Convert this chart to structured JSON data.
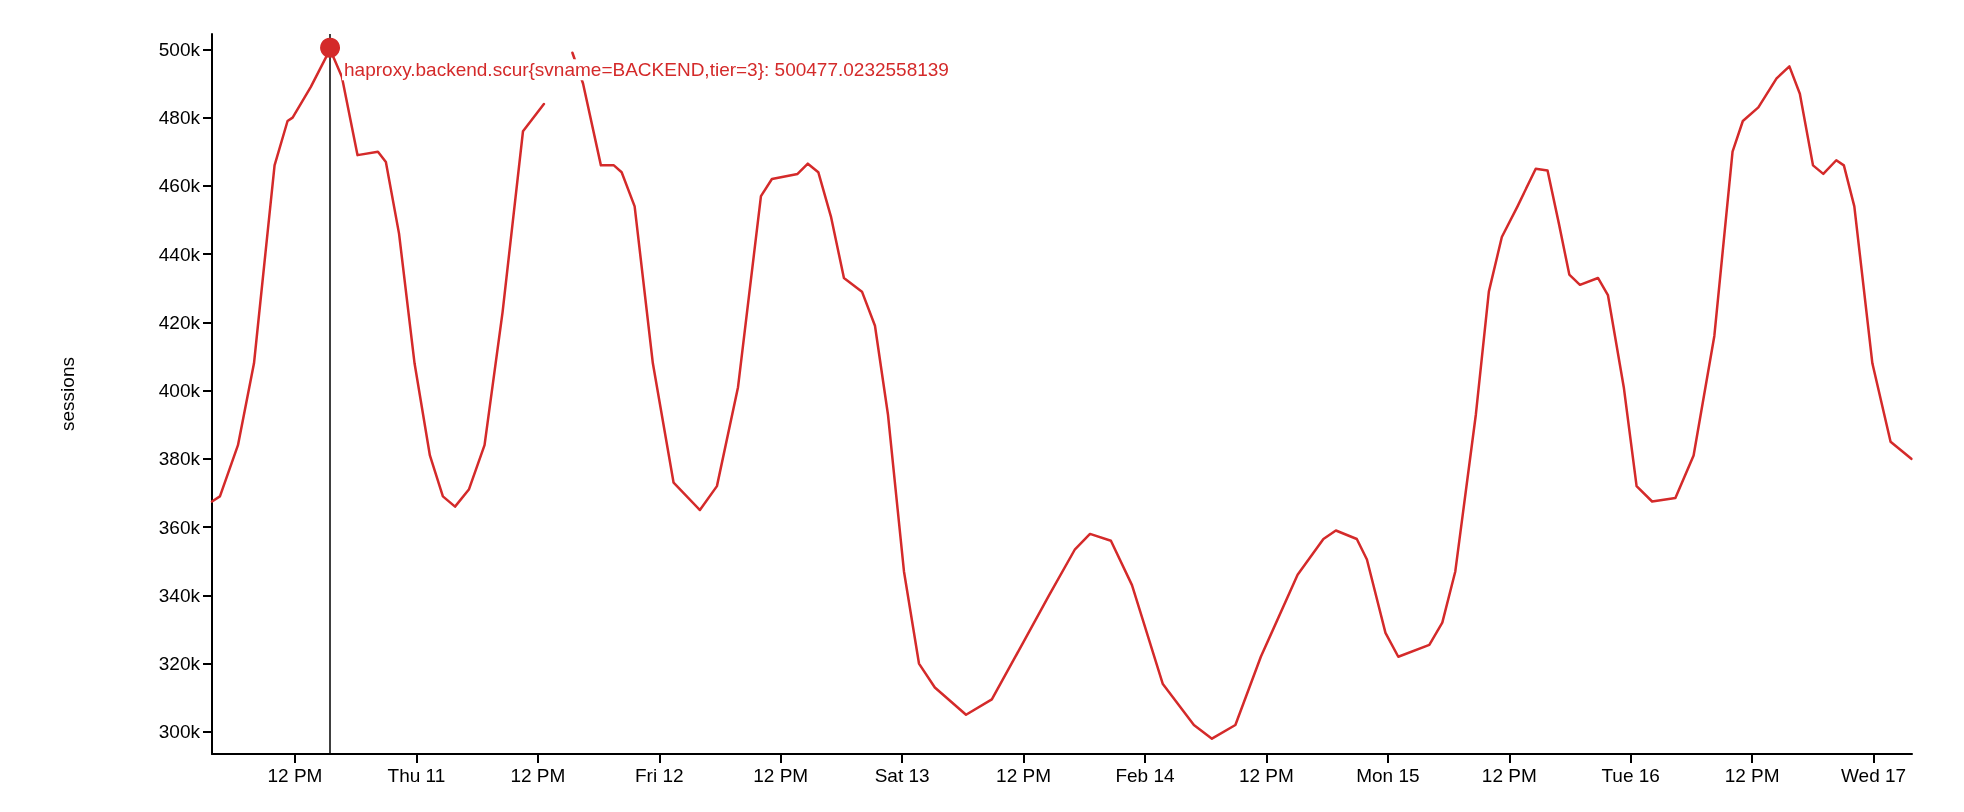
{
  "chart_data": {
    "type": "line",
    "ylabel": "sessions",
    "marker": "none",
    "x": [
      "--02-10T03:48",
      "--02-10T04:35",
      "--02-10T06:22",
      "--02-10T07:57",
      "--02-10T09:59",
      "--02-10T11:16",
      "--02-10T11:46",
      "--02-10T13:34",
      "--02-10T15:28",
      "--02-10T16:38",
      "--02-10T18:11",
      "--02-10T20:12",
      "--02-10T20:59",
      "--02-10T22:17",
      "--02-10T23:49",
      "--02-11T01:20",
      "--02-11T02:37",
      "--02-11T03:49",
      "--02-11T05:11",
      "--02-11T06:44",
      "--02-11T08:31",
      "--02-11T10:32",
      "--02-11T12:36",
      "--02-11T13:53",
      "--02-11T15:25",
      "--02-11T16:28",
      "--02-11T18:14",
      "--02-11T19:31",
      "--02-11T20:17",
      "--02-11T21:34",
      "--02-11T23:22",
      "--02-12T01:25",
      "--02-12T04:01",
      "--02-12T05:42",
      "--02-12T07:47",
      "--02-12T10:03",
      "--02-12T11:08",
      "--02-12T13:40",
      "--02-12T14:41",
      "--02-12T15:43",
      "--02-12T16:58",
      "--02-12T18:15",
      "--02-12T20:02",
      "--02-12T21:19",
      "--02-12T22:36",
      "--02-13T00:11",
      "--02-13T01:40",
      "--02-13T03:14",
      "--02-13T06:19",
      "--02-13T08:52",
      "--02-13T11:56",
      "--02-13T14:31",
      "--02-13T17:05",
      "--02-13T18:34",
      "--02-13T20:38",
      "--02-13T22:43",
      "--02-14T01:46",
      "--02-14T04:50",
      "--02-14T06:37",
      "--02-14T08:56",
      "--02-14T11:27",
      "--02-14T15:05",
      "--02-14T17:38",
      "--02-14T18:52",
      "--02-14T20:56",
      "--02-14T21:56",
      "--02-14T23:46",
      "--02-15T01:02",
      "--02-15T04:06",
      "--02-15T05:23",
      "--02-15T06:40",
      "--02-15T08:42",
      "--02-15T09:59",
      "--02-15T11:16",
      "--02-15T12:49",
      "--02-15T14:37",
      "--02-15T15:47",
      "--02-15T16:54",
      "--02-15T17:56",
      "--02-15T18:59",
      "--02-15T20:46",
      "--02-15T21:45",
      "--02-15T23:19",
      "--02-16T00:35",
      "--02-16T02:07",
      "--02-16T04:25",
      "--02-16T06:13",
      "--02-16T08:16",
      "--02-16T10:04",
      "--02-16T11:05",
      "--02-16T12:37",
      "--02-16T14:25",
      "--02-16T15:41",
      "--02-16T16:43",
      "--02-16T18:01",
      "--02-16T19:02",
      "--02-16T20:19",
      "--02-16T21:04",
      "--02-16T22:06",
      "--02-16T23:53",
      "--02-17T01:41",
      "--02-17T03:44"
    ],
    "series": [
      {
        "color": "#d42a2a",
        "values": [
          367500,
          369000,
          384000,
          408000,
          466000,
          479000,
          480000,
          489000,
          500000,
          492000,
          469000,
          470000,
          467000,
          446000,
          408000,
          381000,
          369000,
          366000,
          371000,
          384000,
          423000,
          476000,
          484000,
          null,
          499000,
          490000,
          466000,
          466000,
          464000,
          454000,
          408000,
          373000,
          365000,
          372000,
          401000,
          457000,
          462000,
          463500,
          466500,
          464000,
          451000,
          433000,
          429000,
          419000,
          393000,
          347000,
          320000,
          313000,
          305000,
          309500,
          326000,
          340000,
          353500,
          358000,
          356000,
          343000,
          314000,
          302000,
          298000,
          302000,
          322000,
          346000,
          356500,
          359000,
          356500,
          350500,
          329000,
          322000,
          325500,
          332000,
          347000,
          393000,
          429000,
          445000,
          454000,
          465000,
          464500,
          449000,
          434000,
          431000,
          433000,
          428000,
          401000,
          372000,
          367500,
          368500,
          381000,
          416000,
          470000,
          479000,
          483000,
          491500,
          495000,
          487000,
          466000,
          463500,
          467500,
          466000,
          454000,
          408000,
          385000,
          380000
        ]
      }
    ],
    "xlim": [
      "--02-10T03:48",
      "--02-17T03:48"
    ],
    "xticks": [
      {
        "value": "--02-10T12:00",
        "label": "12 PM"
      },
      {
        "value": "--02-11T00:00",
        "label": "Thu 11"
      },
      {
        "value": "--02-11T12:00",
        "label": "12 PM"
      },
      {
        "value": "--02-12T00:00",
        "label": "Fri 12"
      },
      {
        "value": "--02-12T12:00",
        "label": "12 PM"
      },
      {
        "value": "--02-13T00:00",
        "label": "Sat 13"
      },
      {
        "value": "--02-13T12:00",
        "label": "12 PM"
      },
      {
        "value": "--02-14T00:00",
        "label": "Feb 14"
      },
      {
        "value": "--02-14T12:00",
        "label": "12 PM"
      },
      {
        "value": "--02-15T00:00",
        "label": "Mon 15"
      },
      {
        "value": "--02-15T12:00",
        "label": "12 PM"
      },
      {
        "value": "--02-16T00:00",
        "label": "Tue 16"
      },
      {
        "value": "--02-16T12:00",
        "label": "12 PM"
      },
      {
        "value": "--02-17T00:00",
        "label": "Wed 17"
      }
    ],
    "ylim": [
      293500,
      504500
    ],
    "yticks": [
      {
        "value": 300000,
        "label": "300k"
      },
      {
        "value": 320000,
        "label": "320k"
      },
      {
        "value": 340000,
        "label": "340k"
      },
      {
        "value": 360000,
        "label": "360k"
      },
      {
        "value": 380000,
        "label": "380k"
      },
      {
        "value": 400000,
        "label": "400k"
      },
      {
        "value": 420000,
        "label": "420k"
      },
      {
        "value": 440000,
        "label": "440k"
      },
      {
        "value": 460000,
        "label": "460k"
      },
      {
        "value": 480000,
        "label": "480k"
      },
      {
        "value": 500000,
        "label": "500k"
      }
    ],
    "ref_lines": [
      {
        "axis": "x",
        "value": "--02-10T15:28",
        "color": "#000000"
      }
    ],
    "annotations": [
      {
        "text": "haproxy.backend.scur{svname=BACKEND,tier=3}: 500477.0232558139",
        "x": "--02-10T15:28",
        "y": 500477
      }
    ]
  }
}
